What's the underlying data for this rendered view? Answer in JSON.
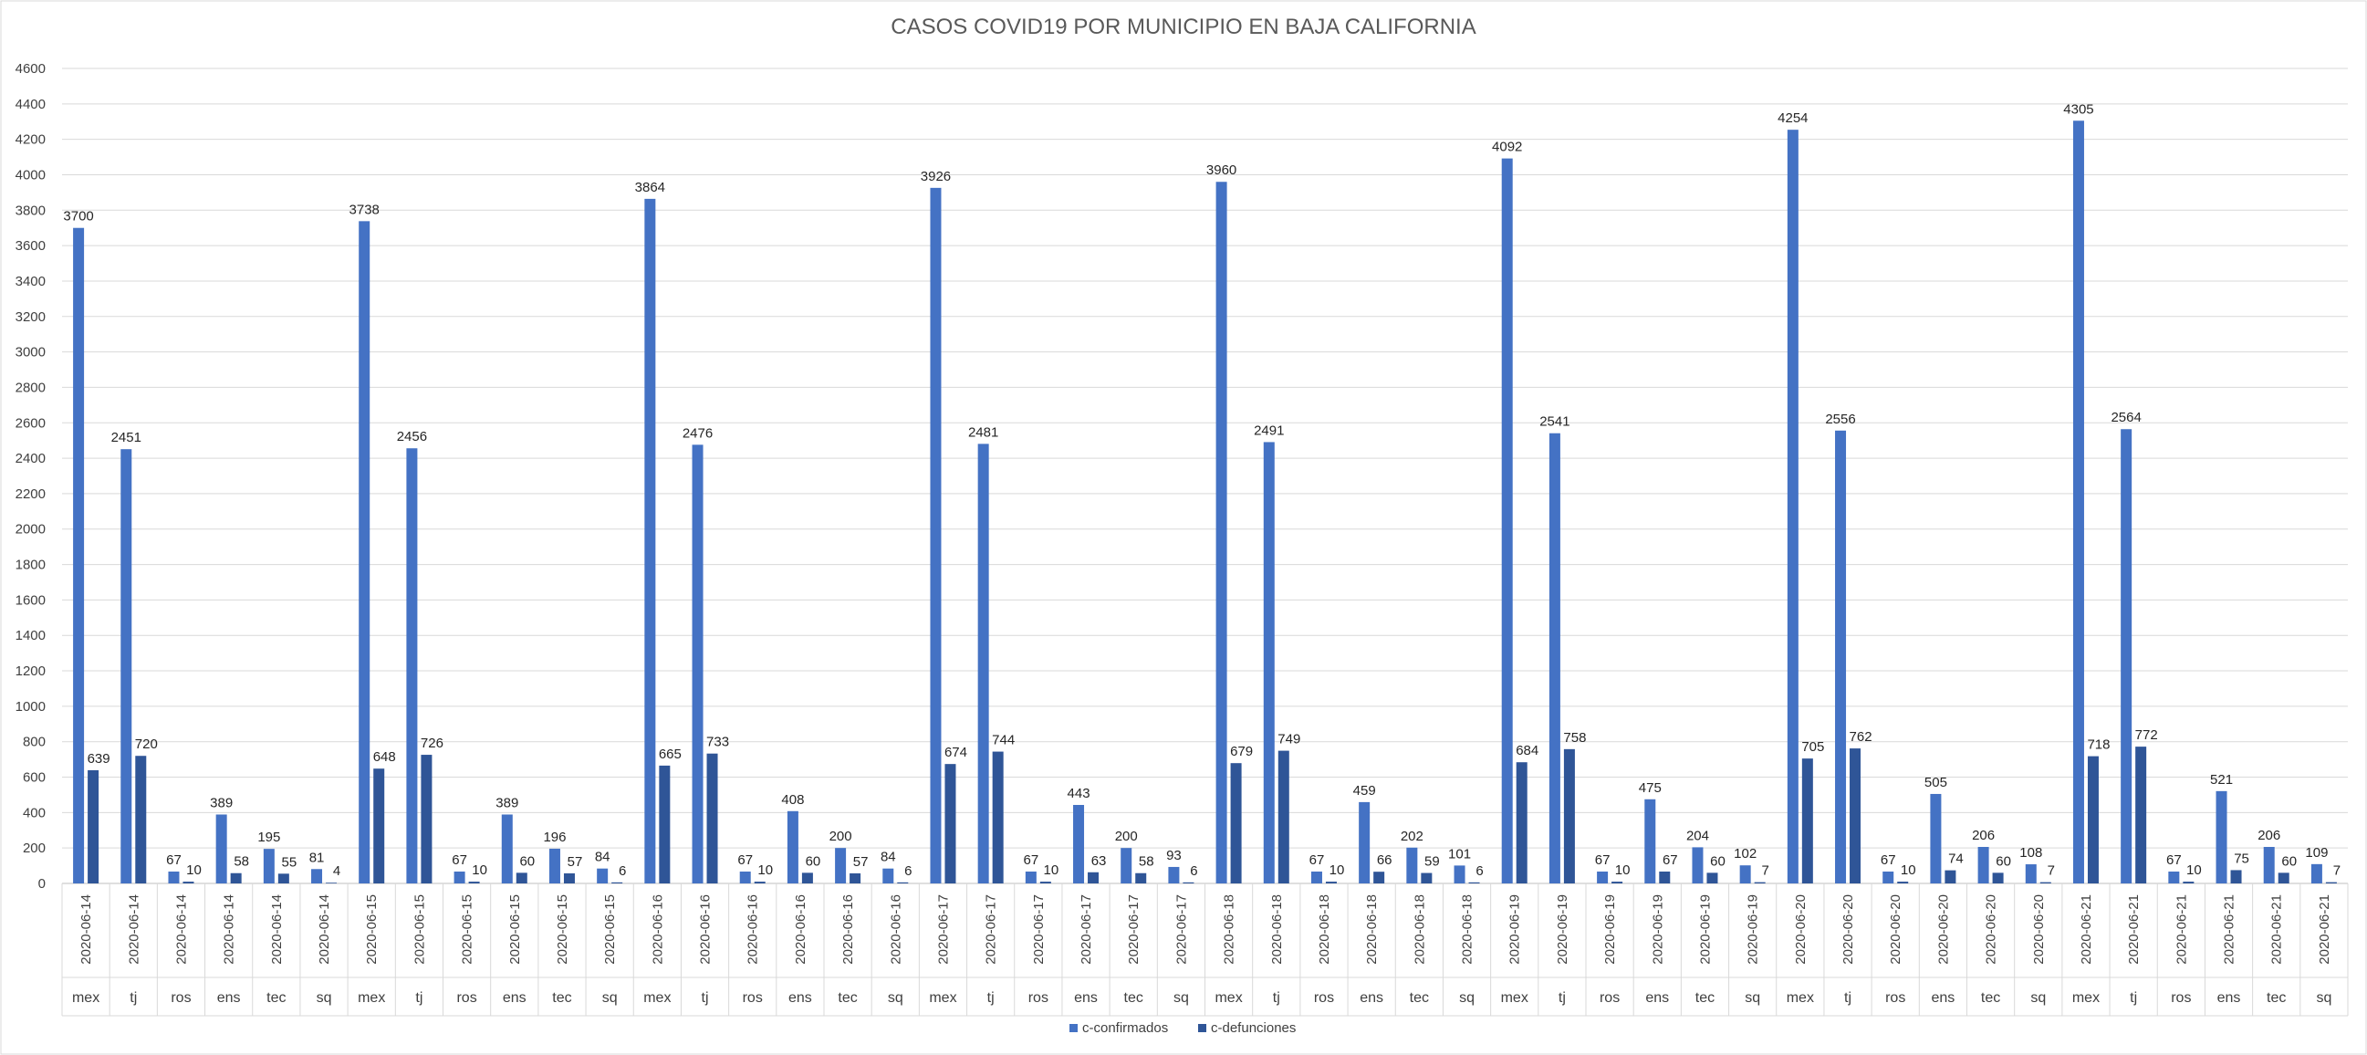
{
  "chart_data": {
    "type": "bar",
    "title": "CASOS COVID19 POR MUNICIPIO EN BAJA CALIFORNIA",
    "xlabel": "",
    "ylabel": "",
    "ylim": [
      0,
      4600
    ],
    "ytick_step": 200,
    "grid": true,
    "legend_position": "bottom",
    "colors": {
      "c-confirmados": "#4472C4",
      "c-defunciones": "#2F5597"
    },
    "categories": [
      {
        "date": "2020-06-14",
        "municipio": "mex"
      },
      {
        "date": "2020-06-14",
        "municipio": "tj"
      },
      {
        "date": "2020-06-14",
        "municipio": "ros"
      },
      {
        "date": "2020-06-14",
        "municipio": "ens"
      },
      {
        "date": "2020-06-14",
        "municipio": "tec"
      },
      {
        "date": "2020-06-14",
        "municipio": "sq"
      },
      {
        "date": "2020-06-15",
        "municipio": "mex"
      },
      {
        "date": "2020-06-15",
        "municipio": "tj"
      },
      {
        "date": "2020-06-15",
        "municipio": "ros"
      },
      {
        "date": "2020-06-15",
        "municipio": "ens"
      },
      {
        "date": "2020-06-15",
        "municipio": "tec"
      },
      {
        "date": "2020-06-15",
        "municipio": "sq"
      },
      {
        "date": "2020-06-16",
        "municipio": "mex"
      },
      {
        "date": "2020-06-16",
        "municipio": "tj"
      },
      {
        "date": "2020-06-16",
        "municipio": "ros"
      },
      {
        "date": "2020-06-16",
        "municipio": "ens"
      },
      {
        "date": "2020-06-16",
        "municipio": "tec"
      },
      {
        "date": "2020-06-16",
        "municipio": "sq"
      },
      {
        "date": "2020-06-17",
        "municipio": "mex"
      },
      {
        "date": "2020-06-17",
        "municipio": "tj"
      },
      {
        "date": "2020-06-17",
        "municipio": "ros"
      },
      {
        "date": "2020-06-17",
        "municipio": "ens"
      },
      {
        "date": "2020-06-17",
        "municipio": "tec"
      },
      {
        "date": "2020-06-17",
        "municipio": "sq"
      },
      {
        "date": "2020-06-18",
        "municipio": "mex"
      },
      {
        "date": "2020-06-18",
        "municipio": "tj"
      },
      {
        "date": "2020-06-18",
        "municipio": "ros"
      },
      {
        "date": "2020-06-18",
        "municipio": "ens"
      },
      {
        "date": "2020-06-18",
        "municipio": "tec"
      },
      {
        "date": "2020-06-18",
        "municipio": "sq"
      },
      {
        "date": "2020-06-19",
        "municipio": "mex"
      },
      {
        "date": "2020-06-19",
        "municipio": "tj"
      },
      {
        "date": "2020-06-19",
        "municipio": "ros"
      },
      {
        "date": "2020-06-19",
        "municipio": "ens"
      },
      {
        "date": "2020-06-19",
        "municipio": "tec"
      },
      {
        "date": "2020-06-19",
        "municipio": "sq"
      },
      {
        "date": "2020-06-20",
        "municipio": "mex"
      },
      {
        "date": "2020-06-20",
        "municipio": "tj"
      },
      {
        "date": "2020-06-20",
        "municipio": "ros"
      },
      {
        "date": "2020-06-20",
        "municipio": "ens"
      },
      {
        "date": "2020-06-20",
        "municipio": "tec"
      },
      {
        "date": "2020-06-20",
        "municipio": "sq"
      },
      {
        "date": "2020-06-21",
        "municipio": "mex"
      },
      {
        "date": "2020-06-21",
        "municipio": "tj"
      },
      {
        "date": "2020-06-21",
        "municipio": "ros"
      },
      {
        "date": "2020-06-21",
        "municipio": "ens"
      },
      {
        "date": "2020-06-21",
        "municipio": "tec"
      },
      {
        "date": "2020-06-21",
        "municipio": "sq"
      }
    ],
    "series": [
      {
        "name": "c-confirmados",
        "values": [
          3700,
          2451,
          67,
          389,
          195,
          81,
          3738,
          2456,
          67,
          389,
          196,
          84,
          3864,
          2476,
          67,
          408,
          200,
          84,
          3926,
          2481,
          67,
          443,
          200,
          93,
          3960,
          2491,
          67,
          459,
          202,
          101,
          4092,
          2541,
          67,
          475,
          204,
          102,
          4254,
          2556,
          67,
          505,
          206,
          108,
          4305,
          2564,
          67,
          521,
          206,
          109
        ]
      },
      {
        "name": "c-defunciones",
        "values": [
          639,
          720,
          10,
          58,
          55,
          4,
          648,
          726,
          10,
          60,
          57,
          6,
          665,
          733,
          10,
          60,
          57,
          6,
          674,
          744,
          10,
          63,
          58,
          6,
          679,
          749,
          10,
          66,
          59,
          6,
          684,
          758,
          10,
          67,
          60,
          7,
          705,
          762,
          10,
          74,
          60,
          7,
          718,
          772,
          10,
          75,
          60,
          7
        ]
      }
    ]
  }
}
